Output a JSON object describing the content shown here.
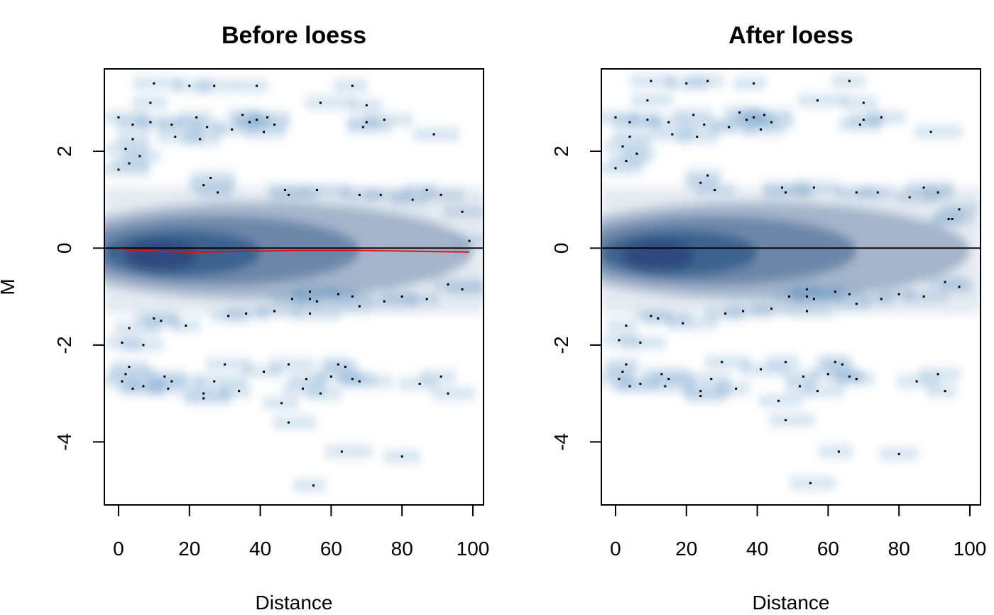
{
  "chart_data": [
    {
      "type": "scatter",
      "style": "smoothScatter density",
      "title": "Before loess",
      "xlabel": "Distance",
      "ylabel": "M",
      "xlim": [
        -4,
        103
      ],
      "ylim": [
        -5.3,
        3.7
      ],
      "x_ticks": [
        "0",
        "20",
        "40",
        "60",
        "80",
        "100"
      ],
      "y_ticks": [
        "-4",
        "-2",
        "0",
        "2"
      ],
      "density_color": "#08306b",
      "reference_line": {
        "y": 0,
        "color": "#000000"
      },
      "loess_fit": {
        "color": "#e3101a",
        "x": [
          0,
          5,
          10,
          15,
          20,
          25,
          30,
          40,
          50,
          60,
          70,
          80,
          90,
          99
        ],
        "y": [
          -0.02,
          -0.04,
          -0.06,
          -0.07,
          -0.08,
          -0.08,
          -0.07,
          -0.06,
          -0.05,
          -0.05,
          -0.05,
          -0.06,
          -0.07,
          -0.08
        ]
      },
      "outliers": [
        [
          10,
          3.4
        ],
        [
          20,
          3.35
        ],
        [
          39,
          3.35
        ],
        [
          27,
          3.35
        ],
        [
          66,
          3.35
        ],
        [
          57,
          3.0
        ],
        [
          70,
          2.95
        ],
        [
          9,
          3.0
        ],
        [
          0,
          2.7
        ],
        [
          4,
          2.55
        ],
        [
          9,
          2.6
        ],
        [
          15,
          2.55
        ],
        [
          22,
          2.7
        ],
        [
          25,
          2.5
        ],
        [
          32,
          2.45
        ],
        [
          35,
          2.75
        ],
        [
          37,
          2.6
        ],
        [
          39,
          2.65
        ],
        [
          42,
          2.7
        ],
        [
          44,
          2.55
        ],
        [
          41,
          2.4
        ],
        [
          16,
          2.3
        ],
        [
          23,
          2.25
        ],
        [
          4,
          2.25
        ],
        [
          70,
          2.6
        ],
        [
          69,
          2.5
        ],
        [
          75,
          2.65
        ],
        [
          89,
          2.35
        ],
        [
          2,
          2.05
        ],
        [
          0,
          1.62
        ],
        [
          3,
          1.75
        ],
        [
          6,
          1.9
        ],
        [
          26,
          1.45
        ],
        [
          24,
          1.3
        ],
        [
          28,
          1.15
        ],
        [
          47,
          1.2
        ],
        [
          56,
          1.2
        ],
        [
          48,
          1.1
        ],
        [
          68,
          1.1
        ],
        [
          74,
          1.1
        ],
        [
          83,
          1.0
        ],
        [
          87,
          1.2
        ],
        [
          91,
          1.1
        ],
        [
          97,
          0.75
        ],
        [
          99,
          0.15
        ],
        [
          97,
          -0.85
        ],
        [
          93,
          -0.75
        ],
        [
          54,
          -0.9
        ],
        [
          49,
          -1.05
        ],
        [
          54,
          -1.05
        ],
        [
          56,
          -1.1
        ],
        [
          62,
          -0.95
        ],
        [
          66,
          -1.0
        ],
        [
          68,
          -1.2
        ],
        [
          75,
          -1.1
        ],
        [
          80,
          -1.0
        ],
        [
          87,
          -1.05
        ],
        [
          31,
          -1.4
        ],
        [
          36,
          -1.35
        ],
        [
          44,
          -1.3
        ],
        [
          54,
          -1.35
        ],
        [
          10,
          -1.45
        ],
        [
          12,
          -1.5
        ],
        [
          3,
          -1.65
        ],
        [
          19,
          -1.6
        ],
        [
          1,
          -1.95
        ],
        [
          7,
          -2.0
        ],
        [
          3,
          -2.45
        ],
        [
          2,
          -2.6
        ],
        [
          1,
          -2.75
        ],
        [
          4,
          -2.9
        ],
        [
          7,
          -2.85
        ],
        [
          13,
          -2.65
        ],
        [
          15,
          -2.75
        ],
        [
          14,
          -2.9
        ],
        [
          24,
          -3.0
        ],
        [
          24,
          -3.1
        ],
        [
          27,
          -2.75
        ],
        [
          30,
          -2.4
        ],
        [
          34,
          -2.95
        ],
        [
          41,
          -2.55
        ],
        [
          46,
          -3.2
        ],
        [
          48,
          -2.4
        ],
        [
          53,
          -2.7
        ],
        [
          52,
          -2.9
        ],
        [
          57,
          -3.0
        ],
        [
          60,
          -2.65
        ],
        [
          62,
          -2.4
        ],
        [
          64,
          -2.45
        ],
        [
          66,
          -2.7
        ],
        [
          68,
          -2.75
        ],
        [
          85,
          -2.8
        ],
        [
          91,
          -2.65
        ],
        [
          93,
          -3.0
        ],
        [
          48,
          -3.6
        ],
        [
          63,
          -4.2
        ],
        [
          80,
          -4.3
        ],
        [
          55,
          -4.9
        ]
      ]
    },
    {
      "type": "scatter",
      "style": "smoothScatter density",
      "title": "After loess",
      "xlabel": "Distance",
      "ylabel": "",
      "xlim": [
        -4,
        103
      ],
      "ylim": [
        -5.3,
        3.7
      ],
      "x_ticks": [
        "0",
        "20",
        "40",
        "60",
        "80",
        "100"
      ],
      "y_ticks": [
        "-4",
        "-2",
        "0",
        "2"
      ],
      "density_color": "#08306b",
      "reference_line": {
        "y": 0,
        "color": "#000000"
      },
      "outliers": [
        [
          10,
          3.45
        ],
        [
          20,
          3.4
        ],
        [
          39,
          3.4
        ],
        [
          26,
          3.45
        ],
        [
          66,
          3.45
        ],
        [
          57,
          3.05
        ],
        [
          70,
          3.0
        ],
        [
          9,
          3.05
        ],
        [
          0,
          2.7
        ],
        [
          4,
          2.6
        ],
        [
          9,
          2.65
        ],
        [
          15,
          2.6
        ],
        [
          22,
          2.75
        ],
        [
          25,
          2.55
        ],
        [
          32,
          2.5
        ],
        [
          35,
          2.8
        ],
        [
          37,
          2.65
        ],
        [
          39,
          2.7
        ],
        [
          42,
          2.75
        ],
        [
          44,
          2.6
        ],
        [
          41,
          2.45
        ],
        [
          16,
          2.35
        ],
        [
          23,
          2.3
        ],
        [
          4,
          2.3
        ],
        [
          70,
          2.65
        ],
        [
          69,
          2.55
        ],
        [
          75,
          2.7
        ],
        [
          89,
          2.4
        ],
        [
          2,
          2.1
        ],
        [
          0,
          1.65
        ],
        [
          3,
          1.8
        ],
        [
          6,
          1.95
        ],
        [
          26,
          1.5
        ],
        [
          24,
          1.35
        ],
        [
          28,
          1.2
        ],
        [
          47,
          1.25
        ],
        [
          56,
          1.25
        ],
        [
          48,
          1.15
        ],
        [
          68,
          1.15
        ],
        [
          74,
          1.15
        ],
        [
          83,
          1.05
        ],
        [
          87,
          1.25
        ],
        [
          91,
          1.15
        ],
        [
          97,
          0.8
        ],
        [
          94,
          0.6
        ],
        [
          95,
          0.6
        ],
        [
          97,
          -0.8
        ],
        [
          93,
          -0.7
        ],
        [
          54,
          -0.85
        ],
        [
          49,
          -1.0
        ],
        [
          54,
          -1.0
        ],
        [
          56,
          -1.05
        ],
        [
          62,
          -0.9
        ],
        [
          66,
          -0.95
        ],
        [
          68,
          -1.15
        ],
        [
          75,
          -1.05
        ],
        [
          80,
          -0.95
        ],
        [
          87,
          -1.0
        ],
        [
          31,
          -1.35
        ],
        [
          36,
          -1.3
        ],
        [
          44,
          -1.25
        ],
        [
          54,
          -1.3
        ],
        [
          10,
          -1.4
        ],
        [
          12,
          -1.45
        ],
        [
          3,
          -1.6
        ],
        [
          19,
          -1.55
        ],
        [
          1,
          -1.9
        ],
        [
          7,
          -1.95
        ],
        [
          3,
          -2.4
        ],
        [
          2,
          -2.55
        ],
        [
          1,
          -2.7
        ],
        [
          4,
          -2.85
        ],
        [
          7,
          -2.8
        ],
        [
          13,
          -2.6
        ],
        [
          15,
          -2.7
        ],
        [
          14,
          -2.85
        ],
        [
          24,
          -2.95
        ],
        [
          24,
          -3.05
        ],
        [
          27,
          -2.7
        ],
        [
          30,
          -2.35
        ],
        [
          34,
          -2.9
        ],
        [
          41,
          -2.5
        ],
        [
          46,
          -3.15
        ],
        [
          48,
          -2.35
        ],
        [
          53,
          -2.65
        ],
        [
          52,
          -2.85
        ],
        [
          57,
          -2.95
        ],
        [
          60,
          -2.6
        ],
        [
          62,
          -2.35
        ],
        [
          64,
          -2.4
        ],
        [
          66,
          -2.65
        ],
        [
          68,
          -2.7
        ],
        [
          85,
          -2.75
        ],
        [
          91,
          -2.6
        ],
        [
          93,
          -2.95
        ],
        [
          48,
          -3.55
        ],
        [
          63,
          -4.2
        ],
        [
          80,
          -4.25
        ],
        [
          55,
          -4.85
        ]
      ]
    }
  ]
}
